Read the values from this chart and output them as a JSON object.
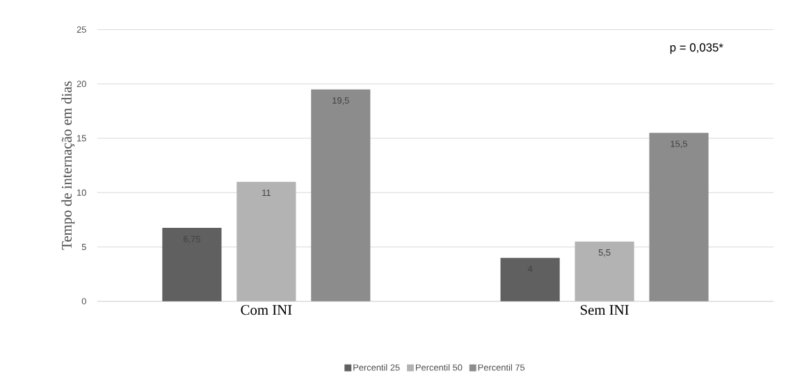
{
  "chart_data": {
    "type": "bar",
    "ylabel": "Tempo de internação em dias",
    "categories": [
      "Com INI",
      "Sem INI"
    ],
    "series": [
      {
        "name": "Percentil 25",
        "color": "#606060",
        "values": [
          6.75,
          4
        ],
        "value_labels": [
          "6,75",
          "4"
        ]
      },
      {
        "name": "Percentil 50",
        "color": "#b3b3b3",
        "values": [
          11,
          5.5
        ],
        "value_labels": [
          "11",
          "5,5"
        ]
      },
      {
        "name": "Percentil 75",
        "color": "#8c8c8c",
        "values": [
          19.5,
          15.5
        ],
        "value_labels": [
          "19,5",
          "15,5"
        ]
      }
    ],
    "ylim": [
      0,
      25
    ],
    "yticks": [
      0,
      5,
      10,
      15,
      20,
      25
    ],
    "grid": "y",
    "legend": "bottom",
    "annotations": [
      "p = 0,035*"
    ]
  }
}
